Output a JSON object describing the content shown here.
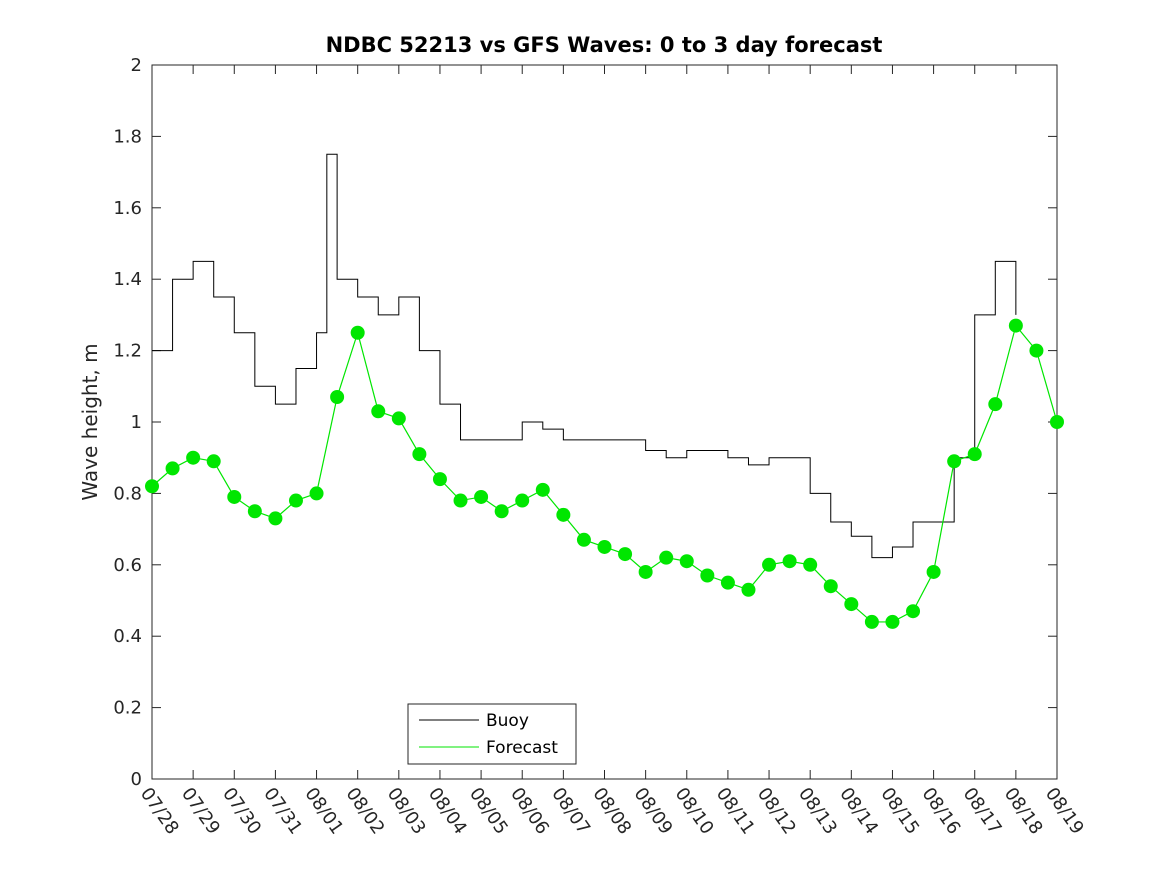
{
  "chart_data": {
    "type": "line",
    "title": "NDBC 52213 vs GFS Waves: 0 to 3 day forecast",
    "xlabel": "",
    "ylabel": "Wave height, m",
    "ylim": [
      0,
      2
    ],
    "yticks": [
      0,
      0.2,
      0.4,
      0.6,
      0.8,
      1,
      1.2,
      1.4,
      1.6,
      1.8,
      2
    ],
    "ytick_labels": [
      "0",
      "0.2",
      "0.4",
      "0.6",
      "0.8",
      "1",
      "1.2",
      "1.4",
      "1.6",
      "1.8",
      "2"
    ],
    "xlim": [
      0,
      22
    ],
    "x_unit": "days since 07/28",
    "categories": [
      "07/28",
      "07/29",
      "07/30",
      "07/31",
      "08/01",
      "08/02",
      "08/03",
      "08/04",
      "08/05",
      "08/06",
      "08/07",
      "08/08",
      "08/09",
      "08/10",
      "08/11",
      "08/12",
      "08/13",
      "08/14",
      "08/15",
      "08/16",
      "08/17",
      "08/18",
      "08/19"
    ],
    "grid": false,
    "legend": {
      "location": "bottom-center",
      "entries": [
        "Buoy",
        "Forecast"
      ]
    },
    "colors": {
      "buoy": "#000000",
      "forecast": "#00e600",
      "axes": "#262626"
    },
    "series": [
      {
        "name": "Buoy",
        "x": [
          0,
          0.5,
          1,
          1.5,
          2,
          2.5,
          3,
          3.5,
          4,
          4.25,
          4.5,
          5,
          5.5,
          6,
          6.5,
          7,
          7.5,
          8,
          8.5,
          9,
          9.5,
          10,
          10.5,
          11,
          11.5,
          12,
          12.5,
          13,
          13.5,
          14,
          14.5,
          15,
          15.5,
          16,
          16.5,
          17,
          17.5,
          18,
          18.5,
          19,
          19.5,
          20,
          20.5,
          21,
          21.5,
          22
        ],
        "values": [
          1.2,
          1.4,
          1.45,
          1.35,
          1.25,
          1.1,
          1.05,
          1.15,
          1.25,
          1.75,
          1.4,
          1.35,
          1.3,
          1.35,
          1.2,
          1.05,
          0.95,
          0.95,
          0.95,
          1.0,
          0.98,
          0.95,
          0.95,
          0.95,
          0.95,
          0.92,
          0.9,
          0.92,
          0.92,
          0.9,
          0.88,
          0.9,
          0.9,
          0.8,
          0.72,
          0.68,
          0.62,
          0.65,
          0.72,
          0.72,
          0.9,
          1.3,
          1.45,
          1.3,
          null,
          null
        ]
      },
      {
        "name": "Forecast",
        "x": [
          0,
          0.5,
          1,
          1.5,
          2,
          2.5,
          3,
          3.5,
          4,
          4.5,
          5,
          5.5,
          6,
          6.5,
          7,
          7.5,
          8,
          8.5,
          9,
          9.5,
          10,
          10.5,
          11,
          11.5,
          12,
          12.5,
          13,
          13.5,
          14,
          14.5,
          15,
          15.5,
          16,
          16.5,
          17,
          17.5,
          18,
          18.5,
          19,
          19.5,
          20,
          20.5,
          21,
          21.5,
          22
        ],
        "values": [
          0.82,
          0.87,
          0.9,
          0.89,
          0.79,
          0.75,
          0.73,
          0.78,
          0.8,
          1.07,
          1.25,
          1.03,
          1.01,
          0.91,
          0.84,
          0.78,
          0.79,
          0.75,
          0.78,
          0.81,
          0.74,
          0.67,
          0.65,
          0.63,
          0.58,
          0.62,
          0.61,
          0.57,
          0.55,
          0.53,
          0.6,
          0.61,
          0.6,
          0.54,
          0.49,
          0.44,
          0.44,
          0.47,
          0.58,
          0.89,
          0.91,
          1.05,
          1.27,
          1.2,
          1.0
        ]
      }
    ]
  }
}
